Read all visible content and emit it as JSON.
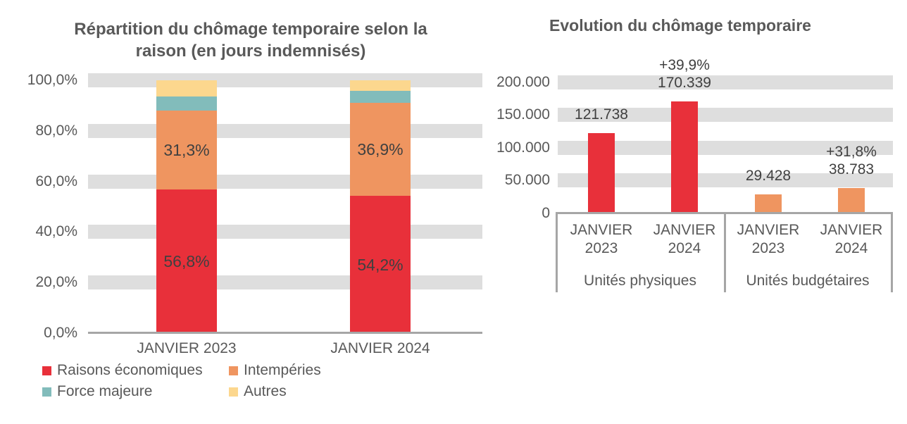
{
  "page": {
    "background": "#FFFFFF"
  },
  "colors": {
    "red": "#E8303A",
    "orange": "#EF9560",
    "teal": "#82BCBB",
    "yellow": "#FCD78E",
    "grid_band": "#DEDEDE",
    "axis_line": "#A6A6A6",
    "text": "#595959",
    "data_label_text": "#404040"
  },
  "chart_data": [
    {
      "type": "bar",
      "subtype": "stacked-100-percent",
      "title": "Répartition du chômage temporaire selon la raison (en jours indemnisés)",
      "categories": [
        "JANVIER 2023",
        "JANVIER 2024"
      ],
      "series": [
        {
          "name": "Raisons économiques",
          "color_key": "red",
          "values": [
            56.8,
            54.2
          ],
          "labels": [
            "56,8%",
            "54,2%"
          ]
        },
        {
          "name": "Intempéries",
          "color_key": "orange",
          "values": [
            31.3,
            36.9
          ],
          "labels": [
            "31,3%",
            "36,9%"
          ]
        },
        {
          "name": "Force majeure",
          "color_key": "teal",
          "values": [
            5.6,
            4.7
          ],
          "labels": [
            "",
            ""
          ]
        },
        {
          "name": "Autres",
          "color_key": "yellow",
          "values": [
            6.3,
            4.2
          ],
          "labels": [
            "",
            ""
          ]
        }
      ],
      "y_ticks": [
        "0,0%",
        "20,0%",
        "40,0%",
        "60,0%",
        "80,0%",
        "100,0%"
      ],
      "y_tick_values": [
        0,
        20,
        40,
        60,
        80,
        100
      ],
      "ylim": [
        0,
        100
      ],
      "grid": "horizontal-bands",
      "legend_position": "bottom"
    },
    {
      "type": "bar",
      "subtype": "grouped",
      "title": "Evolution du chômage temporaire",
      "groups": [
        {
          "label": "Unités physiques",
          "color_key": "red",
          "bars": [
            {
              "category": "JANVIER 2023",
              "value": 121738,
              "label": "121.738",
              "delta": ""
            },
            {
              "category": "JANVIER 2024",
              "value": 170339,
              "label": "170.339",
              "delta": "+39,9%"
            }
          ]
        },
        {
          "label": "Unités budgétaires",
          "color_key": "orange",
          "bars": [
            {
              "category": "JANVIER 2023",
              "value": 29428,
              "label": "29.428",
              "delta": ""
            },
            {
              "category": "JANVIER 2024",
              "value": 38783,
              "label": "38.783",
              "delta": "+31,8%"
            }
          ]
        }
      ],
      "y_ticks": [
        "0",
        "50.000",
        "100.000",
        "150.000",
        "200.000"
      ],
      "y_tick_values": [
        0,
        50000,
        100000,
        150000,
        200000
      ],
      "ylim": [
        0,
        200000
      ],
      "grid": "horizontal-bands",
      "legend_position": "none"
    }
  ]
}
